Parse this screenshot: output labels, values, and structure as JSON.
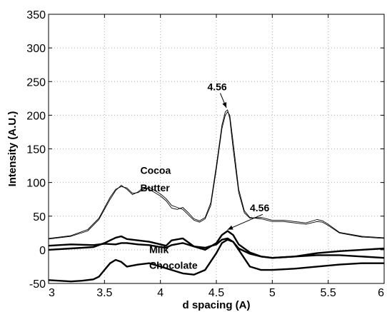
{
  "chart_data": {
    "type": "line",
    "xlabel": "d spacing (A)",
    "ylabel": "Intensity (A.U.)",
    "xlim": [
      3,
      6
    ],
    "ylim": [
      -50,
      350
    ],
    "grid": true,
    "x_ticks": [
      "3",
      "3.5",
      "4",
      "4.5",
      "5",
      "5.5",
      "6"
    ],
    "y_ticks": [
      "-50",
      "0",
      "50",
      "100",
      "150",
      "200",
      "250",
      "300",
      "350"
    ],
    "series": [
      {
        "style": "thin",
        "x": [
          3.0,
          3.2,
          3.35,
          3.45,
          3.55,
          3.6,
          3.65,
          3.7,
          3.75,
          3.8,
          3.85,
          3.9,
          3.95,
          4.0,
          4.05,
          4.1,
          4.15,
          4.2,
          4.25,
          4.3,
          4.35,
          4.4,
          4.45,
          4.5,
          4.55,
          4.58,
          4.6,
          4.62,
          4.65,
          4.7,
          4.75,
          4.8,
          4.9,
          5.0,
          5.1,
          5.2,
          5.3,
          5.4,
          5.45,
          5.5,
          5.6,
          5.8,
          6.0
        ],
        "y": [
          16,
          20,
          28,
          45,
          75,
          88,
          96,
          90,
          82,
          86,
          93,
          90,
          85,
          80,
          73,
          62,
          60,
          63,
          55,
          46,
          43,
          48,
          70,
          125,
          185,
          205,
          208,
          195,
          150,
          85,
          55,
          47,
          48,
          44,
          44,
          42,
          40,
          45,
          43,
          38,
          26,
          20,
          18
        ]
      },
      {
        "style": "thin",
        "x": [
          3.0,
          3.2,
          3.35,
          3.45,
          3.55,
          3.6,
          3.65,
          3.7,
          3.75,
          3.8,
          3.85,
          3.9,
          3.95,
          4.0,
          4.05,
          4.1,
          4.15,
          4.2,
          4.25,
          4.3,
          4.35,
          4.4,
          4.45,
          4.5,
          4.55,
          4.58,
          4.6,
          4.62,
          4.65,
          4.7,
          4.75,
          4.8,
          4.9,
          5.0,
          5.1,
          5.2,
          5.3,
          5.4,
          5.45,
          5.5,
          5.6,
          5.8,
          6.0
        ],
        "y": [
          17,
          21,
          30,
          47,
          78,
          90,
          94,
          92,
          84,
          85,
          90,
          93,
          88,
          83,
          76,
          66,
          63,
          60,
          52,
          44,
          41,
          46,
          66,
          120,
          180,
          200,
          205,
          200,
          160,
          90,
          58,
          48,
          46,
          42,
          42,
          40,
          38,
          42,
          41,
          36,
          25,
          19,
          17
        ]
      },
      {
        "style": "thick",
        "x": [
          3.0,
          3.2,
          3.4,
          3.5,
          3.6,
          3.65,
          3.7,
          3.8,
          3.9,
          4.0,
          4.05,
          4.1,
          4.2,
          4.3,
          4.4,
          4.5,
          4.55,
          4.6,
          4.65,
          4.7,
          4.8,
          4.9,
          5.0,
          5.2,
          5.4,
          5.6,
          5.8,
          6.0
        ],
        "y": [
          0,
          2,
          4,
          10,
          18,
          20,
          16,
          14,
          12,
          8,
          6,
          14,
          17,
          5,
          0,
          10,
          22,
          28,
          22,
          8,
          -4,
          -10,
          -12,
          -10,
          -5,
          -2,
          0,
          2
        ]
      },
      {
        "style": "thick",
        "x": [
          3.0,
          3.2,
          3.4,
          3.5,
          3.6,
          3.65,
          3.7,
          3.8,
          3.9,
          4.0,
          4.05,
          4.1,
          4.2,
          4.3,
          4.4,
          4.5,
          4.55,
          4.6,
          4.65,
          4.7,
          4.8,
          4.9,
          5.0,
          5.2,
          5.4,
          5.6,
          5.8,
          6.0
        ],
        "y": [
          6,
          8,
          7,
          9,
          8,
          10,
          10,
          8,
          7,
          4,
          3,
          7,
          10,
          5,
          3,
          8,
          15,
          17,
          12,
          2,
          -6,
          -10,
          -12,
          -10,
          -8,
          -8,
          -10,
          -12
        ]
      },
      {
        "style": "thick",
        "x": [
          3.0,
          3.2,
          3.3,
          3.4,
          3.45,
          3.5,
          3.55,
          3.6,
          3.65,
          3.7,
          3.8,
          3.9,
          4.0,
          4.1,
          4.2,
          4.3,
          4.4,
          4.5,
          4.55,
          4.6,
          4.65,
          4.7,
          4.8,
          4.9,
          5.0,
          5.2,
          5.4,
          5.6,
          5.8,
          6.0
        ],
        "y": [
          -45,
          -47,
          -46,
          -44,
          -40,
          -30,
          -20,
          -15,
          -18,
          -25,
          -22,
          -20,
          -25,
          -30,
          -35,
          -37,
          -30,
          -5,
          10,
          15,
          12,
          0,
          -25,
          -30,
          -30,
          -28,
          -25,
          -22,
          -20,
          -20
        ]
      }
    ],
    "annotations": [
      {
        "text": "4.56",
        "x": 4.42,
        "y": 237,
        "arrow_to": [
          4.59,
          211
        ]
      },
      {
        "text": "4.56",
        "x": 4.8,
        "y": 57,
        "arrow_to": [
          4.6,
          30
        ]
      },
      {
        "text": "Cocoa",
        "x": 3.82,
        "y": 113
      },
      {
        "text": "Butter",
        "x": 3.82,
        "y": 87
      },
      {
        "text": "Milk",
        "x": 3.9,
        "y": -5
      },
      {
        "text": "Chocolate",
        "x": 3.9,
        "y": -28
      }
    ]
  }
}
